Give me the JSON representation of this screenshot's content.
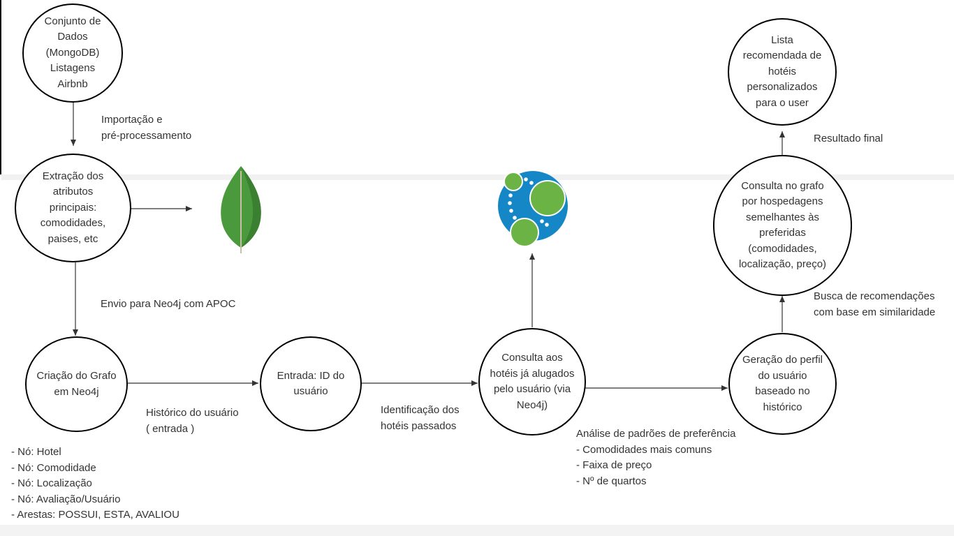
{
  "nodes": {
    "dataset": "Conjunto de\nDados\n(MongoDB)\nListagens\nAirbnb",
    "extraction": "Extração dos\natributos\nprincipais:\ncomodidades,\npaises, etc",
    "graph_creation": "Criação do Grafo\nem Neo4j",
    "user_input": "Entrada: ID do\nusuário",
    "hotel_query": "Consulta aos\nhotéis já alugados\npelo usuário (via\nNeo4j)",
    "profile": "Geração do perfil\ndo usuário\nbaseado no\nhistórico",
    "graph_query": "Consulta no grafo\npor hospedagens\nsemelhantes às\npreferidas\n(comodidades,\nlocalização, preço)",
    "result_list": "Lista\nrecomendada de\nhotéis\npersonalizados\npara o user"
  },
  "edge_labels": {
    "import": "Importação e\npré-processamento",
    "send_neo4j": "Envio para Neo4j com APOC",
    "history": "Histórico do usuário\n( entrada )",
    "identify": "Identificação dos\nhotéis passados",
    "analysis": "Análise de padrões de preferência\n- Comodidades mais comuns\n- Faixa de preço\n- Nº de quartos",
    "search": "Busca de recomendações\ncom base em similaridade",
    "final": "Resultado final"
  },
  "notes": {
    "graph_schema": "- Nó: Hotel\n- Nó: Comodidade\n- Nó: Localização\n- Nó: Avaliação/Usuário\n- Arestas: POSSUI, ESTA, AVALIOU"
  },
  "logos": {
    "mongodb": "mongodb-leaf-icon",
    "neo4j": "neo4j-graph-icon"
  },
  "colors": {
    "mongodb_green": "#4e9a3f",
    "neo4j_blue": "#1587c7",
    "neo4j_green": "#6ab344",
    "stroke": "#000000",
    "text": "#333333"
  }
}
